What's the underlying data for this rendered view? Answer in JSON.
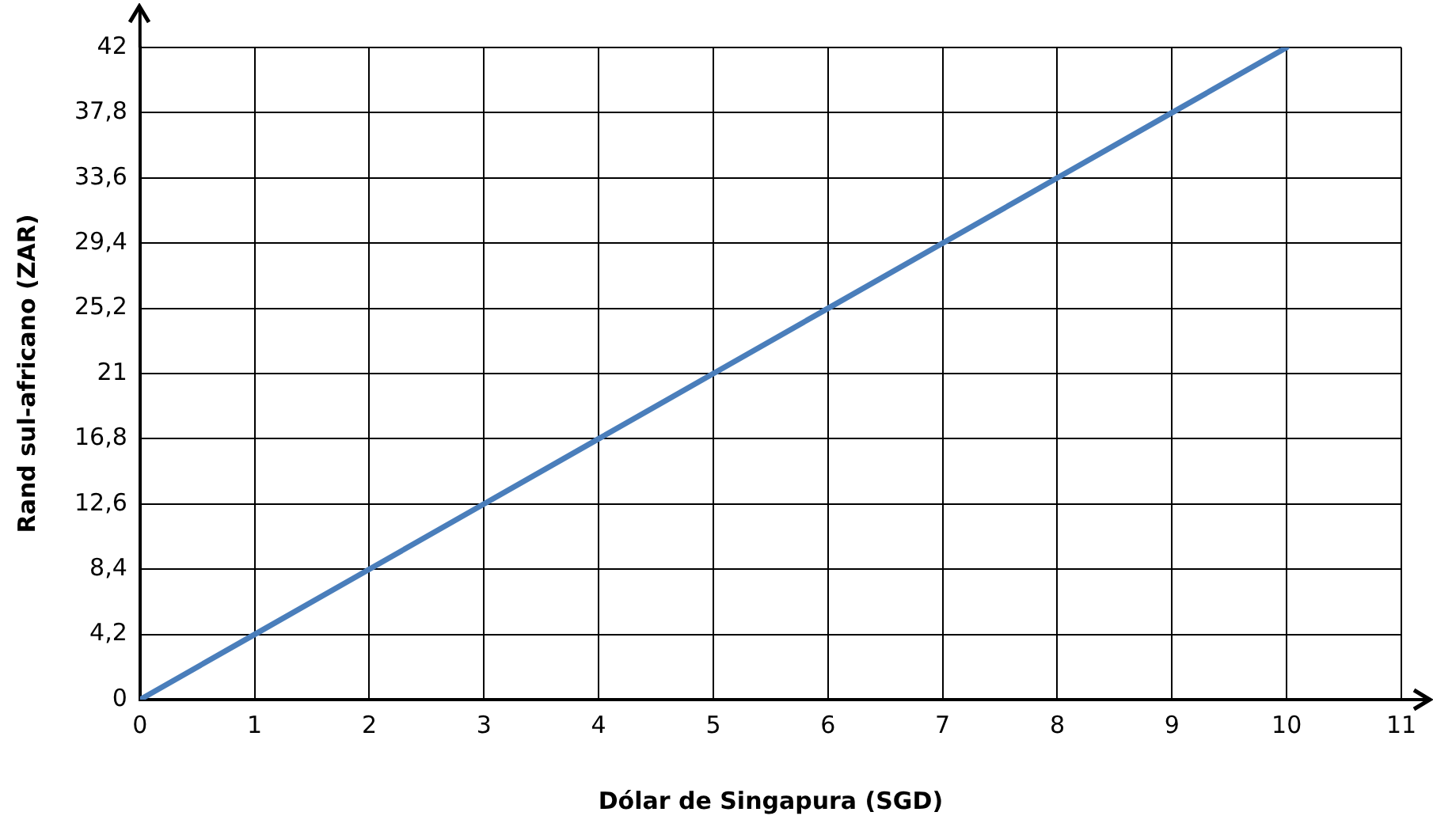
{
  "chart_data": {
    "type": "line",
    "xlabel": "Dólar de Singapura (SGD)",
    "ylabel": "Rand sul-africano (ZAR)",
    "x": [
      0,
      1,
      2,
      3,
      4,
      5,
      6,
      7,
      8,
      9,
      10
    ],
    "series": [
      {
        "color": "#4a7ebb",
        "values": [
          0,
          4.2,
          8.4,
          12.6,
          16.8,
          21,
          25.2,
          29.4,
          33.6,
          37.8,
          42
        ]
      }
    ],
    "xlim": [
      0,
      11
    ],
    "xticks": [
      0,
      1,
      2,
      3,
      4,
      5,
      6,
      7,
      8,
      9,
      10,
      11
    ],
    "ylim": [
      0,
      42
    ],
    "yticks": [
      0,
      {
        "value": 4.2,
        "label": "4,2"
      },
      {
        "value": 8.4,
        "label": "8,4"
      },
      {
        "value": 12.6,
        "label": "12,6"
      },
      {
        "value": 16.8,
        "label": "16,8"
      },
      21,
      {
        "value": 25.2,
        "label": "25,2"
      },
      {
        "value": 29.4,
        "label": "29,4"
      },
      {
        "value": 33.6,
        "label": "33,6"
      },
      {
        "value": 37.8,
        "label": "37,8"
      },
      42
    ],
    "grid": true,
    "legend": false,
    "marker": "none",
    "line_style": "solid"
  }
}
